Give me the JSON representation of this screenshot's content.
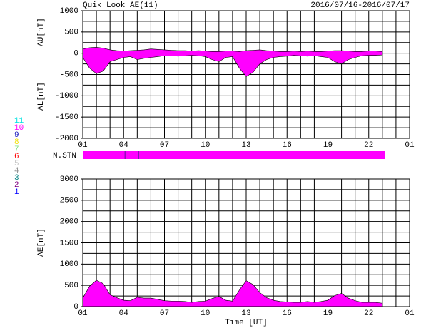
{
  "header": {
    "title": "Quik Look AE(11)",
    "date_range": "2016/07/16-2016/07/17"
  },
  "station_legend": [
    {
      "label": "11",
      "color": "#00e0e0"
    },
    {
      "label": "10",
      "color": "#ff00ff"
    },
    {
      "label": "9",
      "color": "#2020c0"
    },
    {
      "label": "8",
      "color": "#f0e000"
    },
    {
      "label": "7",
      "color": "#80e080"
    },
    {
      "label": "6",
      "color": "#ff0000"
    },
    {
      "label": "5",
      "color": "#c8c8c8"
    },
    {
      "label": "4",
      "color": "#909090"
    },
    {
      "label": "3",
      "color": "#008080"
    },
    {
      "label": "2",
      "color": "#800080"
    },
    {
      "label": "1",
      "color": "#0000ff"
    }
  ],
  "station_strip": {
    "label": "N.STN",
    "start": 0,
    "end": 22.2,
    "color": "#ff00ff",
    "dips": [
      3.1,
      4.1
    ],
    "dip_color": "#6010a0"
  },
  "chart_data": [
    {
      "type": "area",
      "ylabels": [
        "AU[nT]",
        "AL[nT]"
      ],
      "xlim": [
        0,
        24
      ],
      "xticks": [
        {
          "value": 0,
          "label": "01"
        },
        {
          "value": 3,
          "label": "04"
        },
        {
          "value": 6,
          "label": "07"
        },
        {
          "value": 9,
          "label": "10"
        },
        {
          "value": 12,
          "label": "13"
        },
        {
          "value": 15,
          "label": "16"
        },
        {
          "value": 18,
          "label": "19"
        },
        {
          "value": 21,
          "label": "22"
        },
        {
          "value": 24,
          "label": "01"
        }
      ],
      "xgrid": [
        1,
        2,
        4,
        5,
        7,
        8,
        10,
        11,
        13,
        14,
        16,
        17,
        19,
        20,
        22,
        23
      ],
      "ylim": [
        -2000,
        1000
      ],
      "yticks": [
        -2000,
        -1500,
        -1000,
        -500,
        0,
        500,
        1000
      ],
      "ygrid": [
        -1750,
        -1500,
        -1250,
        -1000,
        -750,
        -500,
        -250,
        250,
        500,
        750
      ],
      "x": [
        0,
        0.5,
        1,
        1.5,
        2,
        2.5,
        3,
        3.5,
        4,
        4.5,
        5,
        5.5,
        6,
        6.5,
        7,
        7.5,
        8,
        8.5,
        9,
        9.5,
        10,
        10.5,
        11,
        11.5,
        12,
        12.5,
        13,
        13.5,
        14,
        14.5,
        15,
        15.5,
        16,
        16.5,
        17,
        17.5,
        18,
        18.5,
        19,
        19.5,
        20,
        20.5,
        21,
        21.5,
        22
      ],
      "series": [
        {
          "name": "AU",
          "color": "#ff00ff",
          "values": [
            100,
            130,
            140,
            120,
            80,
            60,
            50,
            60,
            70,
            80,
            100,
            90,
            80,
            70,
            60,
            60,
            50,
            60,
            50,
            40,
            40,
            50,
            50,
            40,
            60,
            70,
            80,
            60,
            50,
            40,
            40,
            50,
            40,
            50,
            40,
            40,
            50,
            60,
            60,
            50,
            40,
            40,
            50,
            50,
            40
          ]
        },
        {
          "name": "AL",
          "color": "#ff00ff",
          "values": [
            -100,
            -350,
            -480,
            -420,
            -200,
            -150,
            -100,
            -80,
            -150,
            -120,
            -100,
            -80,
            -60,
            -60,
            -70,
            -60,
            -50,
            -60,
            -80,
            -150,
            -200,
            -100,
            -80,
            -350,
            -550,
            -450,
            -250,
            -150,
            -100,
            -80,
            -70,
            -50,
            -60,
            -70,
            -60,
            -80,
            -100,
            -200,
            -250,
            -150,
            -100,
            -60,
            -50,
            -50,
            -40
          ]
        }
      ]
    },
    {
      "type": "area",
      "ylabels": [
        "AE[nT]"
      ],
      "xlabel": "Time [UT]",
      "xlim": [
        0,
        24
      ],
      "xticks": [
        {
          "value": 0,
          "label": "01"
        },
        {
          "value": 3,
          "label": "04"
        },
        {
          "value": 6,
          "label": "07"
        },
        {
          "value": 9,
          "label": "10"
        },
        {
          "value": 12,
          "label": "13"
        },
        {
          "value": 15,
          "label": "16"
        },
        {
          "value": 18,
          "label": "19"
        },
        {
          "value": 21,
          "label": "22"
        },
        {
          "value": 24,
          "label": "01"
        }
      ],
      "xgrid": [
        1,
        2,
        4,
        5,
        7,
        8,
        10,
        11,
        13,
        14,
        16,
        17,
        19,
        20,
        22,
        23
      ],
      "ylim": [
        0,
        3000
      ],
      "yticks": [
        0,
        500,
        1000,
        1500,
        2000,
        2500,
        3000
      ],
      "ygrid": [
        250,
        500,
        750,
        1000,
        1250,
        1500,
        1750,
        2000,
        2250,
        2500,
        2750
      ],
      "x": [
        0,
        0.5,
        1,
        1.5,
        2,
        2.5,
        3,
        3.5,
        4,
        4.5,
        5,
        5.5,
        6,
        6.5,
        7,
        7.5,
        8,
        8.5,
        9,
        9.5,
        10,
        10.5,
        11,
        11.5,
        12,
        12.5,
        13,
        13.5,
        14,
        14.5,
        15,
        15.5,
        16,
        16.5,
        17,
        17.5,
        18,
        18.5,
        19,
        19.5,
        20,
        20.5,
        21,
        21.5,
        22
      ],
      "series": [
        {
          "name": "AE",
          "color": "#ff00ff",
          "values": [
            200,
            480,
            620,
            540,
            280,
            210,
            150,
            140,
            220,
            200,
            200,
            170,
            140,
            130,
            130,
            120,
            100,
            120,
            130,
            190,
            240,
            150,
            130,
            390,
            610,
            520,
            330,
            210,
            150,
            120,
            110,
            100,
            100,
            120,
            100,
            120,
            150,
            260,
            310,
            200,
            140,
            100,
            100,
            100,
            80
          ]
        }
      ]
    }
  ]
}
